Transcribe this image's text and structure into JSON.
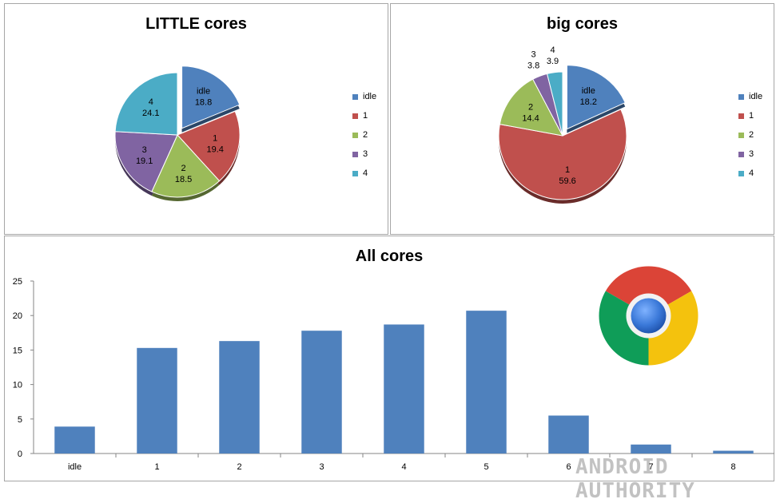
{
  "chart_data": [
    {
      "type": "pie",
      "title": "LITTLE cores",
      "categories": [
        "idle",
        "1",
        "2",
        "3",
        "4"
      ],
      "values": [
        18.8,
        19.4,
        18.5,
        19.1,
        24.1
      ],
      "exploded": [
        "idle"
      ],
      "legend": "right",
      "colors": [
        "#4f81bd",
        "#c0504d",
        "#9bbb59",
        "#8064a2",
        "#4bacc6"
      ]
    },
    {
      "type": "pie",
      "title": "big cores",
      "categories": [
        "idle",
        "1",
        "2",
        "3",
        "4"
      ],
      "values": [
        18.2,
        59.6,
        14.4,
        3.8,
        3.9
      ],
      "exploded": [
        "idle"
      ],
      "legend": "right",
      "colors": [
        "#4f81bd",
        "#c0504d",
        "#9bbb59",
        "#8064a2",
        "#4bacc6"
      ]
    },
    {
      "type": "bar",
      "title": "All cores",
      "categories": [
        "idle",
        "1",
        "2",
        "3",
        "4",
        "5",
        "6",
        "7",
        "8"
      ],
      "values": [
        3.9,
        15.3,
        16.3,
        17.8,
        18.7,
        20.7,
        5.5,
        1.3,
        0.4
      ],
      "ylim": [
        0,
        25
      ],
      "yticks": [
        0,
        5,
        10,
        15,
        20,
        25
      ],
      "grid": false,
      "color": "#4f81bd"
    }
  ],
  "logo": {
    "name": "chrome-logo",
    "colors": [
      "#db4437",
      "#0f9d58",
      "#f4c20d",
      "#4285f4"
    ]
  },
  "watermark": "ANDROID AUTHORITY"
}
